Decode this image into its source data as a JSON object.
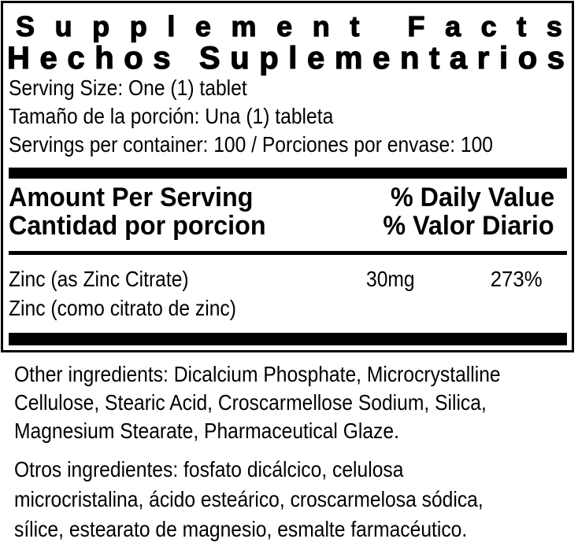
{
  "label_panel": {
    "title_en": "Supplement Facts",
    "title_es": "Hechos Suplementarios",
    "serving_info": {
      "serving_size_en": "Serving Size: One (1) tablet",
      "serving_size_es": "Tamaño de la porción: Una (1) tableta",
      "servings_per_container": "Servings per container: 100 / Porciones por envase: 100"
    },
    "column_headers": {
      "amount_per_serving_en": "Amount Per Serving",
      "amount_per_serving_es": "Cantidad por porcion",
      "daily_value_en": "% Daily Value",
      "daily_value_es": "% Valor Diario"
    },
    "nutrient_rows": [
      {
        "name_en": "Zinc (as Zinc Citrate)",
        "name_es": "Zinc (como citrato de zinc)",
        "amount": "30mg",
        "daily_value": "273%"
      }
    ]
  },
  "other_ingredients_en": {
    "lines": [
      "Other ingredients: Dicalcium Phosphate, Microcrystalline",
      "Cellulose, Stearic Acid, Croscarmellose Sodium, Silica,",
      "Magnesium Stearate, Pharmaceutical Glaze."
    ]
  },
  "other_ingredients_es": {
    "lines": [
      "Otros ingredientes: fosfato dicálcico, celulosa",
      "microcristalina, ácido esteárico, croscarmelosa sódica,",
      "sílice, estearato de magnesio, esmalte farmacéutico."
    ]
  },
  "colors": {
    "text": "#000000",
    "background": "#ffffff",
    "rule": "#000000"
  }
}
